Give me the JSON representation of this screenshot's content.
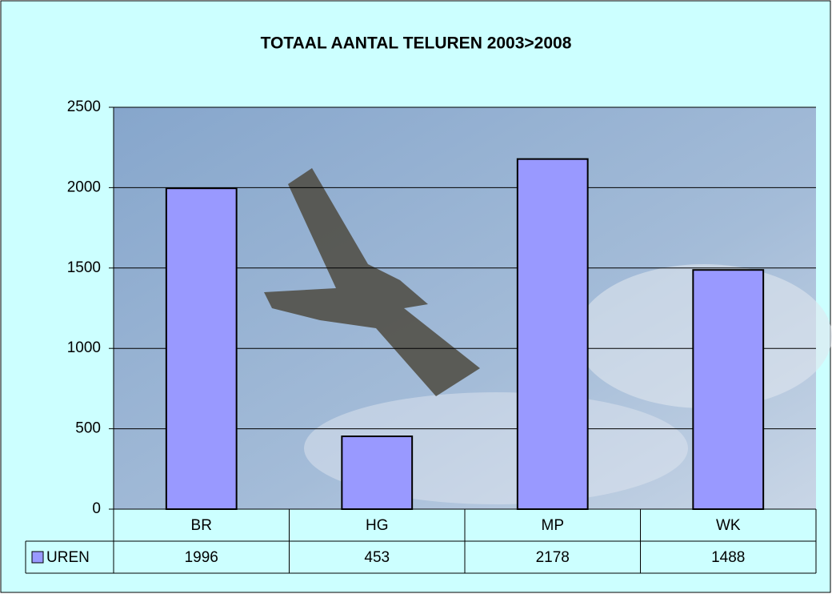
{
  "chart_data": {
    "type": "bar",
    "title": "TOTAAL AANTAL TELUREN 2003>2008",
    "categories": [
      "BR",
      "HG",
      "MP",
      "WK"
    ],
    "series": [
      {
        "name": "UREN",
        "color": "#9999ff",
        "values": [
          1996,
          453,
          2178,
          1488
        ]
      }
    ],
    "ylim": [
      0,
      2500
    ],
    "yticks": [
      0,
      500,
      1000,
      1500,
      2000,
      2500
    ],
    "grid": true
  }
}
